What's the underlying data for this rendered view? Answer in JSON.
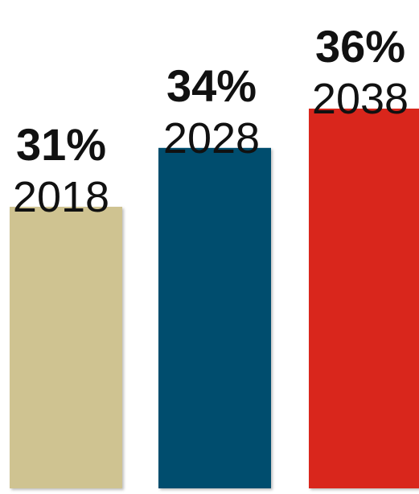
{
  "chart_data": {
    "type": "bar",
    "categories": [
      "2018",
      "2028",
      "2038"
    ],
    "values": [
      31,
      34,
      36
    ],
    "value_labels": [
      "31%",
      "34%",
      "36%"
    ],
    "colors": [
      "#cfc391",
      "#034d6e",
      "#d9281c"
    ],
    "unit": "%",
    "grid": false,
    "legend": "none",
    "ylim": [
      0,
      100
    ]
  }
}
